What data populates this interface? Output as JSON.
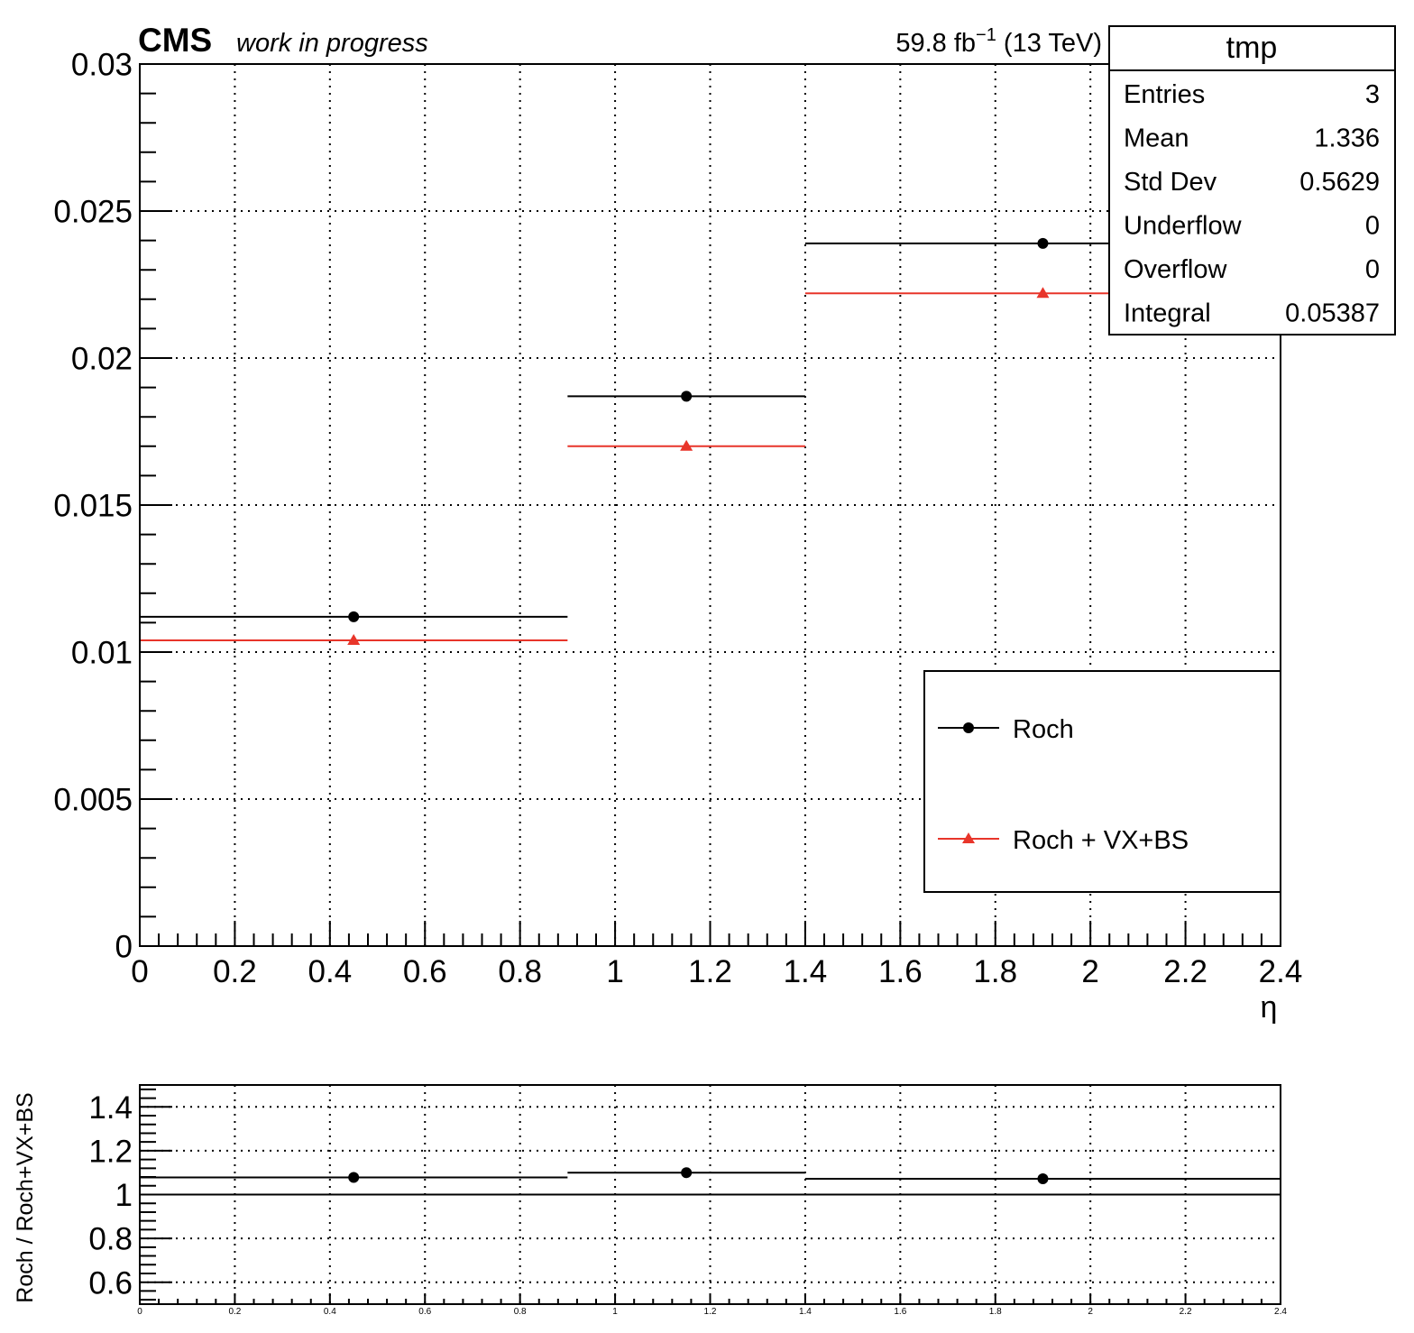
{
  "header": {
    "experiment": "CMS",
    "status": "work in progress",
    "lumi_prefix": "59.8 fb",
    "lumi_exp": "−1",
    "lumi_suffix": " (13 TeV)"
  },
  "stats_box": {
    "title": "tmp",
    "rows": [
      {
        "label": "Entries",
        "value": "3"
      },
      {
        "label": "Mean",
        "value": "1.336"
      },
      {
        "label": "Std Dev",
        "value": "0.5629"
      },
      {
        "label": "Underflow",
        "value": "0"
      },
      {
        "label": "Overflow",
        "value": "0"
      },
      {
        "label": "Integral",
        "value": "0.05387"
      }
    ]
  },
  "chart_data": [
    {
      "type": "scatter",
      "panel": "main",
      "xlabel": "η",
      "ylabel": "",
      "xlim": [
        0,
        2.4
      ],
      "ylim": [
        0,
        0.03
      ],
      "grid": true,
      "legend_position": "bottom-right",
      "x_ticks": [
        0,
        0.2,
        0.4,
        0.6,
        0.8,
        1,
        1.2,
        1.4,
        1.6,
        1.8,
        2,
        2.2,
        2.4
      ],
      "x_tick_labels": [
        "0",
        "0.2",
        "0.4",
        "0.6",
        "0.8",
        "1",
        "1.2",
        "1.4",
        "1.6",
        "1.8",
        "2",
        "2.2",
        "2.4"
      ],
      "y_ticks": [
        0,
        0.005,
        0.01,
        0.015,
        0.02,
        0.025,
        0.03
      ],
      "y_tick_labels": [
        "0",
        "0.005",
        "0.01",
        "0.015",
        "0.02",
        "0.025",
        "0.03"
      ],
      "bin_edges": [
        0,
        0.9,
        1.4,
        2.4
      ],
      "series": [
        {
          "name": "Roch",
          "color": "#000000",
          "marker": "circle",
          "x": [
            0.45,
            1.15,
            1.9
          ],
          "values": [
            0.0112,
            0.0187,
            0.0239
          ]
        },
        {
          "name": "Roch + VX+BS",
          "color": "#e8352a",
          "marker": "triangle",
          "x": [
            0.45,
            1.15,
            1.9
          ],
          "values": [
            0.0104,
            0.017,
            0.0222
          ]
        }
      ]
    },
    {
      "type": "scatter",
      "panel": "ratio",
      "xlabel": "",
      "ylabel": "Roch / Roch+VX+BS",
      "xlim": [
        0,
        2.4
      ],
      "ylim": [
        0.5,
        1.5
      ],
      "grid": true,
      "reference_line": 1,
      "x_ticks": [
        0,
        0.2,
        0.4,
        0.6,
        0.8,
        1,
        1.2,
        1.4,
        1.6,
        1.8,
        2,
        2.2,
        2.4
      ],
      "x_tick_labels": [
        "0",
        "0.2",
        "0.4",
        "0.6",
        "0.8",
        "1",
        "1.2",
        "1.4",
        "1.6",
        "1.8",
        "2",
        "2.2",
        "2.4"
      ],
      "y_ticks": [
        0.6,
        0.8,
        1,
        1.2,
        1.4
      ],
      "y_tick_labels": [
        "0.6",
        "0.8",
        "1",
        "1.2",
        "1.4"
      ],
      "bin_edges": [
        0,
        0.9,
        1.4,
        2.4
      ],
      "series": [
        {
          "color": "#000000",
          "marker": "circle",
          "x": [
            0.45,
            1.15,
            1.9
          ],
          "values": [
            1.078,
            1.1,
            1.072
          ]
        }
      ]
    }
  ]
}
